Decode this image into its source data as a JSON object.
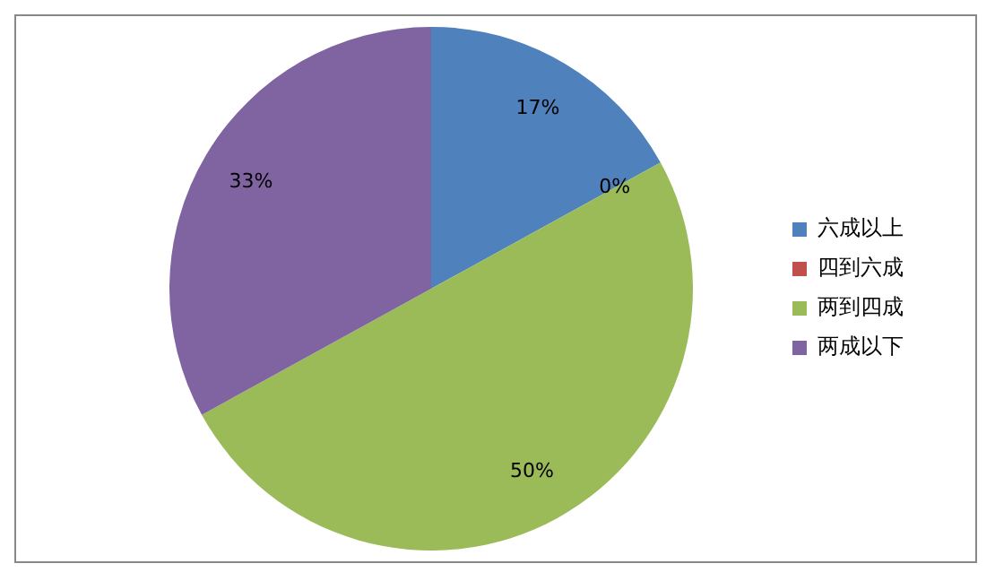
{
  "chart_data": {
    "type": "pie",
    "categories": [
      "六成以上",
      "四到六成",
      "两到四成",
      "两成以下"
    ],
    "values": [
      17,
      0,
      50,
      33
    ],
    "value_labels": [
      "17%",
      "0%",
      "50%",
      "33%"
    ],
    "colors": [
      "#4f81bd",
      "#c0504d",
      "#9bbb59",
      "#8064a2"
    ],
    "legend": "right"
  }
}
